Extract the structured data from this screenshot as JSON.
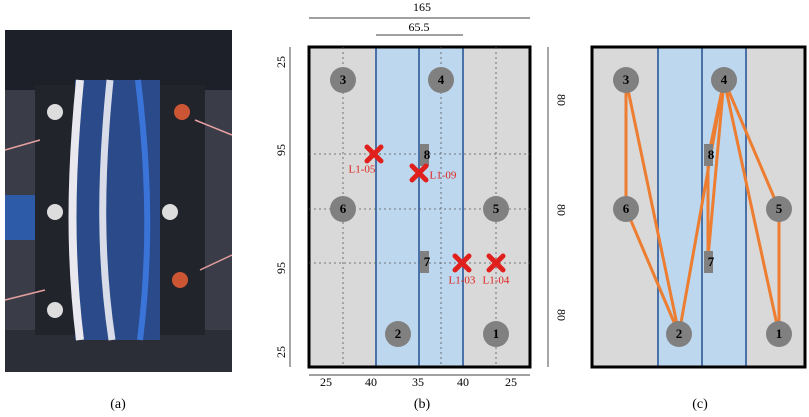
{
  "panel_a": {
    "caption": "(a)"
  },
  "panel_b": {
    "caption": "(b)",
    "dimensions": {
      "top": [
        "165",
        "65.5"
      ],
      "left": [
        "25",
        "95",
        "95",
        "25"
      ],
      "right": [
        "80",
        "80",
        "80"
      ],
      "bottom": [
        "25",
        "40",
        "35",
        "40",
        "25"
      ]
    },
    "sensors": [
      "1",
      "2",
      "3",
      "4",
      "5",
      "6"
    ],
    "strips": [
      "7",
      "8"
    ],
    "impacts": [
      "L1-05",
      "L1-09",
      "L1-03",
      "L1-04"
    ]
  },
  "panel_c": {
    "caption": "(c)",
    "sensors": [
      "1",
      "2",
      "3",
      "4",
      "5",
      "6"
    ],
    "strips": [
      "7",
      "8"
    ]
  }
}
